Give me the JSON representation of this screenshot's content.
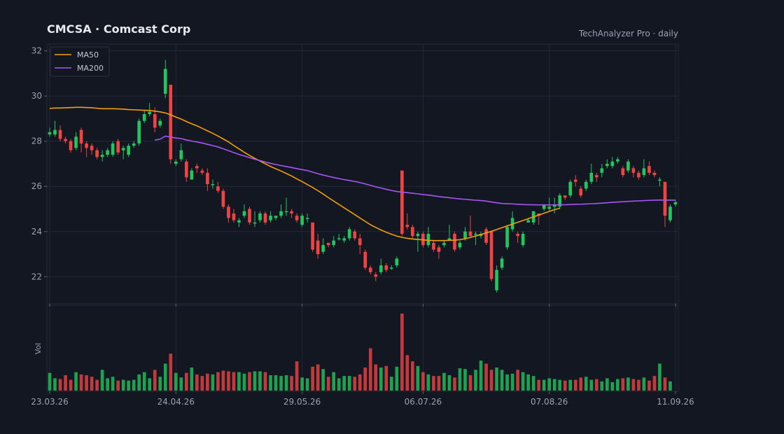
{
  "header": {
    "title": "CMCSA  ·  Comcast Corp",
    "source": "TechAnalyzer Pro · daily"
  },
  "colors": {
    "background": "#131722",
    "panel": "#131722",
    "grid": "#232836",
    "up": "#22c55e",
    "down": "#ef4444",
    "ma50": "#f59e0b",
    "ma200": "#a855f7",
    "text": "#9aa1b1"
  },
  "chart_data": {
    "type": "candlestick",
    "title": "CMCSA  ·  Comcast Corp",
    "ylim": [
      20.8,
      32.3
    ],
    "y_ticks": [
      22,
      24,
      26,
      28,
      30,
      32
    ],
    "x_tick_labels": [
      "23.03.26",
      "24.04.26",
      "29.05.26",
      "06.07.26",
      "07.08.26",
      "11.09.26"
    ],
    "volume_label": "Vol",
    "grid": true,
    "legend": {
      "position": "top-left",
      "entries": [
        "MA50",
        "MA200"
      ]
    },
    "candles": [
      [
        28.3,
        28.4,
        28.6,
        28.2
      ],
      [
        28.3,
        28.5,
        28.9,
        28.2
      ],
      [
        28.5,
        28.1,
        28.7,
        28.0
      ],
      [
        28.1,
        28.0,
        28.2,
        27.9
      ],
      [
        28.0,
        27.6,
        28.1,
        27.5
      ],
      [
        27.7,
        28.2,
        28.4,
        27.6
      ],
      [
        28.5,
        27.9,
        28.6,
        27.5
      ],
      [
        27.9,
        27.7,
        28.0,
        27.3
      ],
      [
        27.8,
        27.6,
        27.9,
        27.4
      ],
      [
        27.6,
        27.3,
        27.7,
        27.2
      ],
      [
        27.3,
        27.4,
        27.6,
        27.1
      ],
      [
        27.4,
        27.6,
        27.7,
        27.3
      ],
      [
        27.4,
        27.9,
        28.0,
        27.3
      ],
      [
        28.0,
        27.5,
        28.1,
        27.4
      ],
      [
        27.6,
        27.7,
        27.8,
        27.2
      ],
      [
        27.4,
        27.8,
        27.9,
        27.3
      ],
      [
        27.8,
        27.9,
        28.0,
        27.7
      ],
      [
        27.9,
        28.9,
        29.0,
        27.8
      ],
      [
        28.9,
        29.2,
        29.4,
        28.8
      ],
      [
        29.2,
        29.3,
        29.7,
        29.1
      ],
      [
        29.2,
        28.6,
        29.5,
        28.4
      ],
      [
        28.7,
        28.9,
        29.0,
        28.6
      ],
      [
        30.1,
        31.2,
        31.6,
        29.9
      ],
      [
        30.5,
        27.2,
        30.5,
        27.0
      ],
      [
        27.0,
        27.1,
        27.2,
        26.9
      ],
      [
        27.2,
        27.6,
        27.9,
        27.1
      ],
      [
        27.1,
        26.4,
        27.2,
        26.2
      ],
      [
        26.3,
        26.7,
        26.8,
        26.3
      ],
      [
        26.9,
        26.8,
        27.0,
        26.6
      ],
      [
        26.7,
        26.6,
        26.8,
        26.5
      ],
      [
        26.6,
        26.1,
        26.8,
        25.8
      ],
      [
        26.1,
        26.1,
        26.3,
        25.9
      ],
      [
        26.0,
        25.8,
        26.2,
        25.7
      ],
      [
        25.8,
        25.1,
        25.9,
        25.0
      ],
      [
        25.1,
        24.6,
        25.2,
        24.4
      ],
      [
        24.8,
        24.5,
        25.0,
        24.4
      ],
      [
        24.4,
        24.5,
        24.6,
        24.2
      ],
      [
        24.7,
        24.9,
        25.2,
        24.6
      ],
      [
        25.0,
        24.4,
        25.1,
        24.3
      ],
      [
        24.4,
        24.4,
        24.9,
        24.2
      ],
      [
        24.5,
        24.8,
        24.9,
        24.4
      ],
      [
        24.8,
        24.4,
        24.9,
        24.3
      ],
      [
        24.5,
        24.7,
        24.9,
        24.4
      ],
      [
        24.6,
        24.7,
        24.7,
        24.5
      ],
      [
        24.7,
        24.9,
        25.2,
        24.6
      ],
      [
        24.9,
        24.9,
        25.5,
        24.7
      ],
      [
        24.9,
        24.8,
        25.0,
        24.6
      ],
      [
        24.7,
        24.5,
        24.8,
        24.4
      ],
      [
        24.3,
        24.7,
        24.8,
        24.2
      ],
      [
        24.6,
        24.6,
        24.8,
        24.4
      ],
      [
        24.4,
        23.2,
        24.4,
        23.1
      ],
      [
        23.6,
        23.0,
        23.9,
        22.8
      ],
      [
        23.1,
        23.4,
        23.7,
        23.0
      ],
      [
        23.5,
        23.4,
        23.5,
        23.3
      ],
      [
        23.4,
        23.6,
        23.8,
        23.3
      ],
      [
        23.7,
        23.7,
        23.9,
        23.6
      ],
      [
        23.6,
        23.7,
        23.8,
        23.5
      ],
      [
        23.7,
        24.1,
        24.2,
        23.6
      ],
      [
        24.0,
        23.7,
        24.1,
        23.6
      ],
      [
        23.7,
        23.4,
        23.9,
        23.0
      ],
      [
        23.1,
        22.4,
        23.2,
        22.3
      ],
      [
        22.4,
        22.2,
        22.5,
        22.1
      ],
      [
        22.1,
        22.0,
        22.2,
        21.8
      ],
      [
        22.2,
        22.5,
        22.8,
        22.1
      ],
      [
        22.5,
        22.3,
        22.6,
        22.2
      ],
      [
        22.4,
        22.4,
        22.5,
        22.3
      ],
      [
        22.5,
        22.8,
        22.9,
        22.4
      ],
      [
        26.7,
        23.9,
        26.7,
        23.8
      ],
      [
        24.3,
        24.2,
        24.8,
        24.1
      ],
      [
        24.2,
        23.8,
        24.3,
        23.7
      ],
      [
        23.8,
        23.9,
        24.0,
        23.1
      ],
      [
        23.9,
        23.4,
        24.0,
        23.3
      ],
      [
        23.4,
        23.9,
        24.2,
        23.3
      ],
      [
        23.5,
        23.2,
        23.6,
        23.1
      ],
      [
        23.3,
        23.1,
        23.4,
        22.8
      ],
      [
        23.4,
        23.5,
        23.6,
        23.3
      ],
      [
        23.6,
        23.7,
        24.3,
        23.6
      ],
      [
        23.9,
        23.2,
        24.0,
        23.1
      ],
      [
        23.3,
        23.5,
        23.6,
        23.2
      ],
      [
        23.7,
        24.0,
        24.2,
        23.6
      ],
      [
        24.0,
        23.8,
        24.7,
        23.7
      ],
      [
        23.9,
        23.9,
        24.0,
        23.4
      ],
      [
        23.8,
        23.9,
        24.0,
        23.7
      ],
      [
        24.1,
        23.5,
        24.2,
        23.4
      ],
      [
        24.0,
        21.9,
        24.0,
        21.8
      ],
      [
        21.4,
        22.3,
        22.5,
        21.3
      ],
      [
        22.4,
        22.8,
        22.9,
        22.3
      ],
      [
        23.3,
        24.2,
        24.3,
        23.2
      ],
      [
        24.1,
        24.6,
        24.9,
        24.0
      ],
      [
        23.9,
        23.8,
        24.0,
        23.5
      ],
      [
        23.4,
        23.9,
        24.0,
        23.3
      ],
      [
        24.4,
        24.5,
        24.6,
        24.4
      ],
      [
        24.4,
        24.9,
        24.9,
        24.3
      ],
      [
        24.8,
        24.7,
        24.8,
        24.3
      ],
      [
        25.0,
        25.2,
        25.2,
        24.9
      ],
      [
        25.0,
        25.1,
        25.5,
        24.9
      ],
      [
        25.1,
        25.2,
        25.5,
        24.8
      ],
      [
        25.1,
        25.6,
        25.7,
        25.0
      ],
      [
        25.6,
        25.5,
        25.6,
        25.4
      ],
      [
        25.6,
        26.2,
        26.3,
        25.5
      ],
      [
        26.3,
        26.2,
        26.5,
        26.0
      ],
      [
        25.9,
        25.6,
        26.0,
        25.5
      ],
      [
        25.9,
        26.2,
        26.3,
        25.8
      ],
      [
        26.2,
        26.6,
        27.0,
        26.1
      ],
      [
        26.5,
        26.4,
        26.6,
        26.2
      ],
      [
        26.6,
        26.8,
        27.0,
        26.4
      ],
      [
        26.9,
        27.0,
        27.2,
        26.8
      ],
      [
        26.9,
        27.1,
        27.3,
        26.8
      ],
      [
        27.1,
        27.2,
        27.3,
        27.0
      ],
      [
        26.8,
        26.5,
        26.9,
        26.4
      ],
      [
        26.7,
        27.1,
        27.2,
        26.6
      ],
      [
        26.8,
        26.6,
        26.9,
        26.4
      ],
      [
        26.6,
        26.4,
        26.7,
        26.3
      ],
      [
        26.5,
        26.8,
        27.2,
        26.4
      ],
      [
        26.9,
        26.6,
        27.1,
        26.5
      ],
      [
        26.6,
        26.5,
        26.7,
        26.4
      ],
      [
        26.3,
        26.3,
        26.4,
        26.0
      ],
      [
        26.2,
        24.7,
        26.2,
        24.2
      ],
      [
        24.5,
        25.1,
        25.2,
        24.4
      ],
      [
        25.2,
        25.3,
        25.4,
        25.1
      ]
    ],
    "volume": [
      0.23,
      0.16,
      0.15,
      0.2,
      0.14,
      0.24,
      0.21,
      0.2,
      0.18,
      0.14,
      0.27,
      0.16,
      0.18,
      0.13,
      0.14,
      0.13,
      0.14,
      0.21,
      0.24,
      0.16,
      0.27,
      0.18,
      0.35,
      0.48,
      0.23,
      0.17,
      0.23,
      0.3,
      0.21,
      0.19,
      0.22,
      0.21,
      0.24,
      0.26,
      0.25,
      0.24,
      0.24,
      0.22,
      0.24,
      0.25,
      0.25,
      0.24,
      0.2,
      0.2,
      0.19,
      0.2,
      0.19,
      0.38,
      0.17,
      0.16,
      0.31,
      0.34,
      0.28,
      0.18,
      0.24,
      0.16,
      0.19,
      0.19,
      0.18,
      0.21,
      0.3,
      0.55,
      0.34,
      0.3,
      0.32,
      0.18,
      0.31,
      1.0,
      0.46,
      0.38,
      0.32,
      0.24,
      0.21,
      0.19,
      0.19,
      0.23,
      0.2,
      0.17,
      0.29,
      0.28,
      0.2,
      0.27,
      0.39,
      0.35,
      0.27,
      0.3,
      0.27,
      0.21,
      0.22,
      0.27,
      0.24,
      0.21,
      0.19,
      0.14,
      0.14,
      0.16,
      0.15,
      0.14,
      0.13,
      0.14,
      0.14,
      0.17,
      0.18,
      0.14,
      0.15,
      0.12,
      0.16,
      0.11,
      0.15,
      0.16,
      0.17,
      0.15,
      0.14,
      0.17,
      0.13,
      0.19,
      0.35,
      0.17,
      0.12
    ],
    "ma50": [
      29.45,
      29.47,
      29.47,
      29.48,
      29.49,
      29.5,
      29.5,
      29.49,
      29.48,
      29.46,
      29.44,
      29.44,
      29.44,
      29.43,
      29.42,
      29.4,
      29.39,
      29.38,
      29.37,
      29.36,
      29.33,
      29.3,
      29.25,
      29.17,
      29.07,
      28.98,
      28.87,
      28.77,
      28.68,
      28.57,
      28.46,
      28.35,
      28.23,
      28.1,
      27.97,
      27.81,
      27.66,
      27.51,
      27.37,
      27.24,
      27.12,
      27.0,
      26.88,
      26.78,
      26.68,
      26.57,
      26.46,
      26.33,
      26.21,
      26.08,
      25.95,
      25.81,
      25.66,
      25.5,
      25.35,
      25.2,
      25.05,
      24.9,
      24.75,
      24.6,
      24.45,
      24.3,
      24.18,
      24.07,
      23.97,
      23.88,
      23.8,
      23.74,
      23.7,
      23.67,
      23.65,
      23.63,
      23.61,
      23.6,
      23.6,
      23.6,
      23.61,
      23.62,
      23.64,
      23.68,
      23.74,
      23.8,
      23.87,
      23.94,
      24.01,
      24.09,
      24.17,
      24.25,
      24.33,
      24.41,
      24.49,
      24.57,
      24.65,
      24.73,
      24.81,
      24.89,
      24.97,
      25.03
    ]
  }
}
